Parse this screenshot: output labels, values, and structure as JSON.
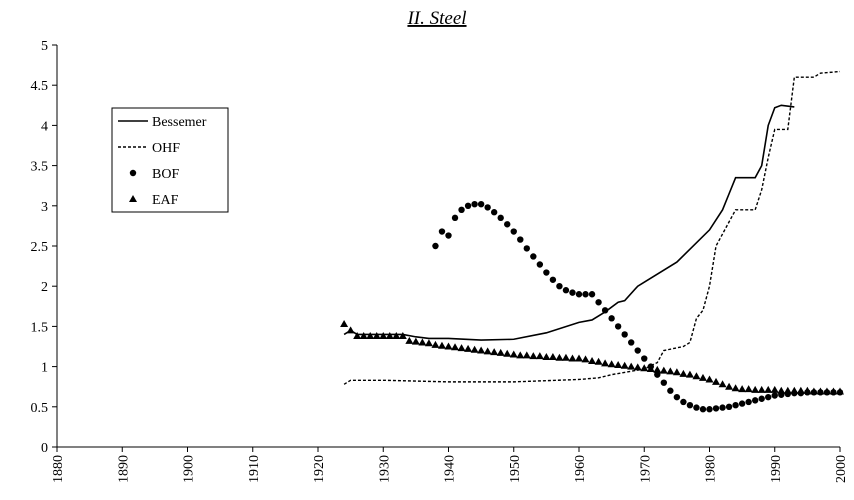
{
  "chart_data": {
    "type": "line",
    "title": "II. Steel",
    "xlim": [
      1880,
      2000
    ],
    "xticks": [
      1880,
      1890,
      1900,
      1910,
      1920,
      1930,
      1940,
      1950,
      1960,
      1970,
      1980,
      1990,
      2000
    ],
    "ylim": [
      0,
      5
    ],
    "yticks": [
      0,
      0.5,
      1,
      1.5,
      2,
      2.5,
      3,
      3.5,
      4,
      4.5,
      5
    ],
    "grid": false,
    "legend": "upper left",
    "series": [
      {
        "name": "Bessemer",
        "color": "#000000",
        "style": "solid",
        "x": [
          1924,
          1925,
          1926,
          1933,
          1935,
          1937,
          1940,
          1945,
          1950,
          1955,
          1960,
          1962,
          1964,
          1966,
          1967,
          1969,
          1970,
          1975,
          1980,
          1982,
          1983,
          1984,
          1985,
          1987,
          1988,
          1989,
          1990,
          1991,
          1993
        ],
        "values": [
          1.4,
          1.45,
          1.4,
          1.4,
          1.37,
          1.35,
          1.35,
          1.33,
          1.34,
          1.42,
          1.55,
          1.58,
          1.68,
          1.8,
          1.82,
          2.0,
          2.05,
          2.3,
          2.7,
          2.95,
          3.15,
          3.35,
          3.35,
          3.35,
          3.5,
          4.0,
          4.22,
          4.25,
          4.23
        ]
      },
      {
        "name": "OHF",
        "color": "#000000",
        "style": "dashed",
        "x": [
          1924,
          1925,
          1930,
          1940,
          1950,
          1960,
          1963,
          1965,
          1970,
          1972,
          1973,
          1976,
          1977,
          1978,
          1979,
          1980,
          1981,
          1983,
          1984,
          1987,
          1988,
          1989,
          1990,
          1992,
          1993,
          1996,
          1997,
          2000
        ],
        "values": [
          0.78,
          0.83,
          0.83,
          0.81,
          0.81,
          0.84,
          0.86,
          0.9,
          0.97,
          1.05,
          1.2,
          1.25,
          1.3,
          1.6,
          1.7,
          2.0,
          2.5,
          2.8,
          2.95,
          2.95,
          3.2,
          3.6,
          3.95,
          3.95,
          4.6,
          4.6,
          4.65,
          4.67
        ]
      },
      {
        "name": "BOF",
        "color": "#000000",
        "style": "circle",
        "x": [
          1938,
          1939,
          1940,
          1941,
          1942,
          1943,
          1944,
          1945,
          1946,
          1947,
          1948,
          1949,
          1950,
          1951,
          1952,
          1953,
          1954,
          1955,
          1956,
          1957,
          1958,
          1959,
          1960,
          1961,
          1962,
          1963,
          1964,
          1965,
          1966,
          1967,
          1968,
          1969,
          1970,
          1971,
          1972,
          1973,
          1974,
          1975,
          1976,
          1977,
          1978,
          1979,
          1980,
          1981,
          1982,
          1983,
          1984,
          1985,
          1986,
          1987,
          1988,
          1989,
          1990,
          1991,
          1992,
          1993,
          1994,
          1995,
          1996,
          1997,
          1998,
          1999,
          2000
        ],
        "values": [
          2.5,
          2.68,
          2.63,
          2.85,
          2.95,
          3.0,
          3.02,
          3.02,
          2.98,
          2.92,
          2.85,
          2.77,
          2.68,
          2.58,
          2.47,
          2.37,
          2.27,
          2.17,
          2.08,
          2.0,
          1.95,
          1.92,
          1.9,
          1.9,
          1.9,
          1.8,
          1.7,
          1.6,
          1.5,
          1.4,
          1.3,
          1.2,
          1.1,
          1.0,
          0.9,
          0.8,
          0.7,
          0.62,
          0.56,
          0.52,
          0.49,
          0.47,
          0.47,
          0.48,
          0.49,
          0.5,
          0.52,
          0.54,
          0.56,
          0.58,
          0.6,
          0.62,
          0.64,
          0.65,
          0.66,
          0.67,
          0.67,
          0.68,
          0.68,
          0.68,
          0.68,
          0.68,
          0.68
        ]
      },
      {
        "name": "EAF",
        "color": "#000000",
        "style": "triangle",
        "x": [
          1924,
          1925,
          1926,
          1927,
          1928,
          1929,
          1930,
          1931,
          1932,
          1933,
          1934,
          1935,
          1936,
          1937,
          1938,
          1939,
          1940,
          1941,
          1942,
          1943,
          1944,
          1945,
          1946,
          1947,
          1948,
          1949,
          1950,
          1951,
          1952,
          1953,
          1954,
          1955,
          1956,
          1957,
          1958,
          1959,
          1960,
          1961,
          1962,
          1963,
          1964,
          1965,
          1966,
          1967,
          1968,
          1969,
          1970,
          1971,
          1972,
          1973,
          1974,
          1975,
          1976,
          1977,
          1978,
          1979,
          1980,
          1981,
          1982,
          1983,
          1984,
          1985,
          1986,
          1987,
          1988,
          1989,
          1990,
          1991,
          1992,
          1993,
          1994,
          1995,
          1996,
          1997,
          1998,
          1999,
          2000
        ],
        "values": [
          1.53,
          1.45,
          1.38,
          1.38,
          1.38,
          1.38,
          1.38,
          1.38,
          1.38,
          1.38,
          1.32,
          1.31,
          1.3,
          1.29,
          1.27,
          1.26,
          1.25,
          1.24,
          1.23,
          1.22,
          1.21,
          1.2,
          1.19,
          1.18,
          1.17,
          1.16,
          1.15,
          1.14,
          1.14,
          1.13,
          1.13,
          1.12,
          1.12,
          1.11,
          1.11,
          1.1,
          1.1,
          1.09,
          1.07,
          1.06,
          1.04,
          1.03,
          1.02,
          1.01,
          1.0,
          0.99,
          0.98,
          0.97,
          0.96,
          0.95,
          0.94,
          0.93,
          0.91,
          0.9,
          0.88,
          0.86,
          0.84,
          0.81,
          0.78,
          0.75,
          0.73,
          0.72,
          0.72,
          0.71,
          0.71,
          0.71,
          0.71,
          0.7,
          0.7,
          0.7,
          0.7,
          0.7,
          0.69,
          0.69,
          0.69,
          0.69,
          0.69
        ]
      }
    ]
  }
}
